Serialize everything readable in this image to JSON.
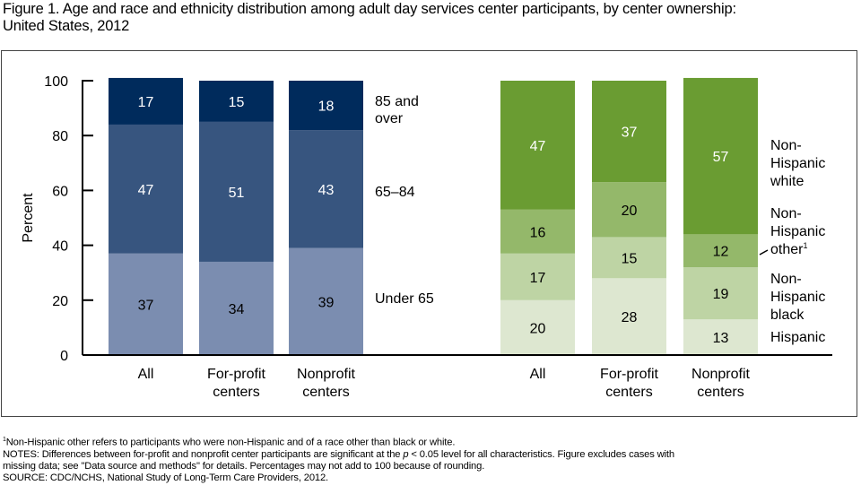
{
  "title_line1": "Figure 1. Age and race and ethnicity distribution among adult day services center participants, by center ownership:",
  "title_line2": "United States, 2012",
  "chart_data": [
    {
      "type": "bar",
      "stacked": true,
      "title": "Age distribution",
      "ylabel": "Percent",
      "ylim": [
        0,
        100
      ],
      "yticks": [
        0,
        20,
        40,
        60,
        80,
        100
      ],
      "categories": [
        [
          "All"
        ],
        [
          "For-profit",
          "centers"
        ],
        [
          "Nonprofit",
          "centers"
        ]
      ],
      "series": [
        {
          "name": "Under 65",
          "label_lines": [
            "Under 65"
          ],
          "color": "#7b8db0",
          "label_color": "#000000",
          "values": [
            37,
            34,
            39
          ]
        },
        {
          "name": "65–84",
          "label_lines": [
            "65–84"
          ],
          "color": "#37557f",
          "label_color": "#ffffff",
          "values": [
            47,
            51,
            43
          ]
        },
        {
          "name": "85 and over",
          "label_lines": [
            "85 and",
            "over"
          ],
          "color": "#002b5c",
          "label_color": "#ffffff",
          "values": [
            17,
            15,
            18
          ]
        }
      ]
    },
    {
      "type": "bar",
      "stacked": true,
      "title": "Race and ethnicity distribution",
      "ylim": [
        0,
        100
      ],
      "categories": [
        [
          "All"
        ],
        [
          "For-profit",
          "centers"
        ],
        [
          "Nonprofit",
          "centers"
        ]
      ],
      "series": [
        {
          "name": "Hispanic",
          "label_lines": [
            "Hispanic"
          ],
          "color": "#dde7d0",
          "label_color": "#000000",
          "values": [
            20,
            28,
            13
          ]
        },
        {
          "name": "Non-Hispanic black",
          "label_lines": [
            "Non-",
            "Hispanic",
            "black"
          ],
          "color": "#bed4a4",
          "label_color": "#000000",
          "values": [
            17,
            15,
            19
          ]
        },
        {
          "name": "Non-Hispanic other",
          "label_lines": [
            "Non-",
            "Hispanic",
            "other"
          ],
          "footnote": "1",
          "color": "#94b86a",
          "label_color": "#000000",
          "values": [
            16,
            20,
            12
          ]
        },
        {
          "name": "Non-Hispanic white",
          "label_lines": [
            "Non-",
            "Hispanic",
            "white"
          ],
          "color": "#6a9c32",
          "label_color": "#ffffff",
          "values": [
            47,
            37,
            57
          ]
        }
      ]
    }
  ],
  "footnotes": {
    "footnote1_mark": "1",
    "footnote1": "Non-Hispanic other refers to participants who were non-Hispanic and of a race other than black or white.",
    "notes_line1_a": "NOTES: Differences between for-profit and nonprofit center participants are significant at the ",
    "notes_p": "p",
    "notes_line1_b": " < 0.05 level for all characteristics. Figure excludes cases with",
    "notes_line2": "missing data; see \"Data source and methods\" for details. Percentages may not add to 100 because of rounding.",
    "source": "SOURCE: CDC/NCHS, National Study of Long-Term Care Providers, 2012."
  }
}
